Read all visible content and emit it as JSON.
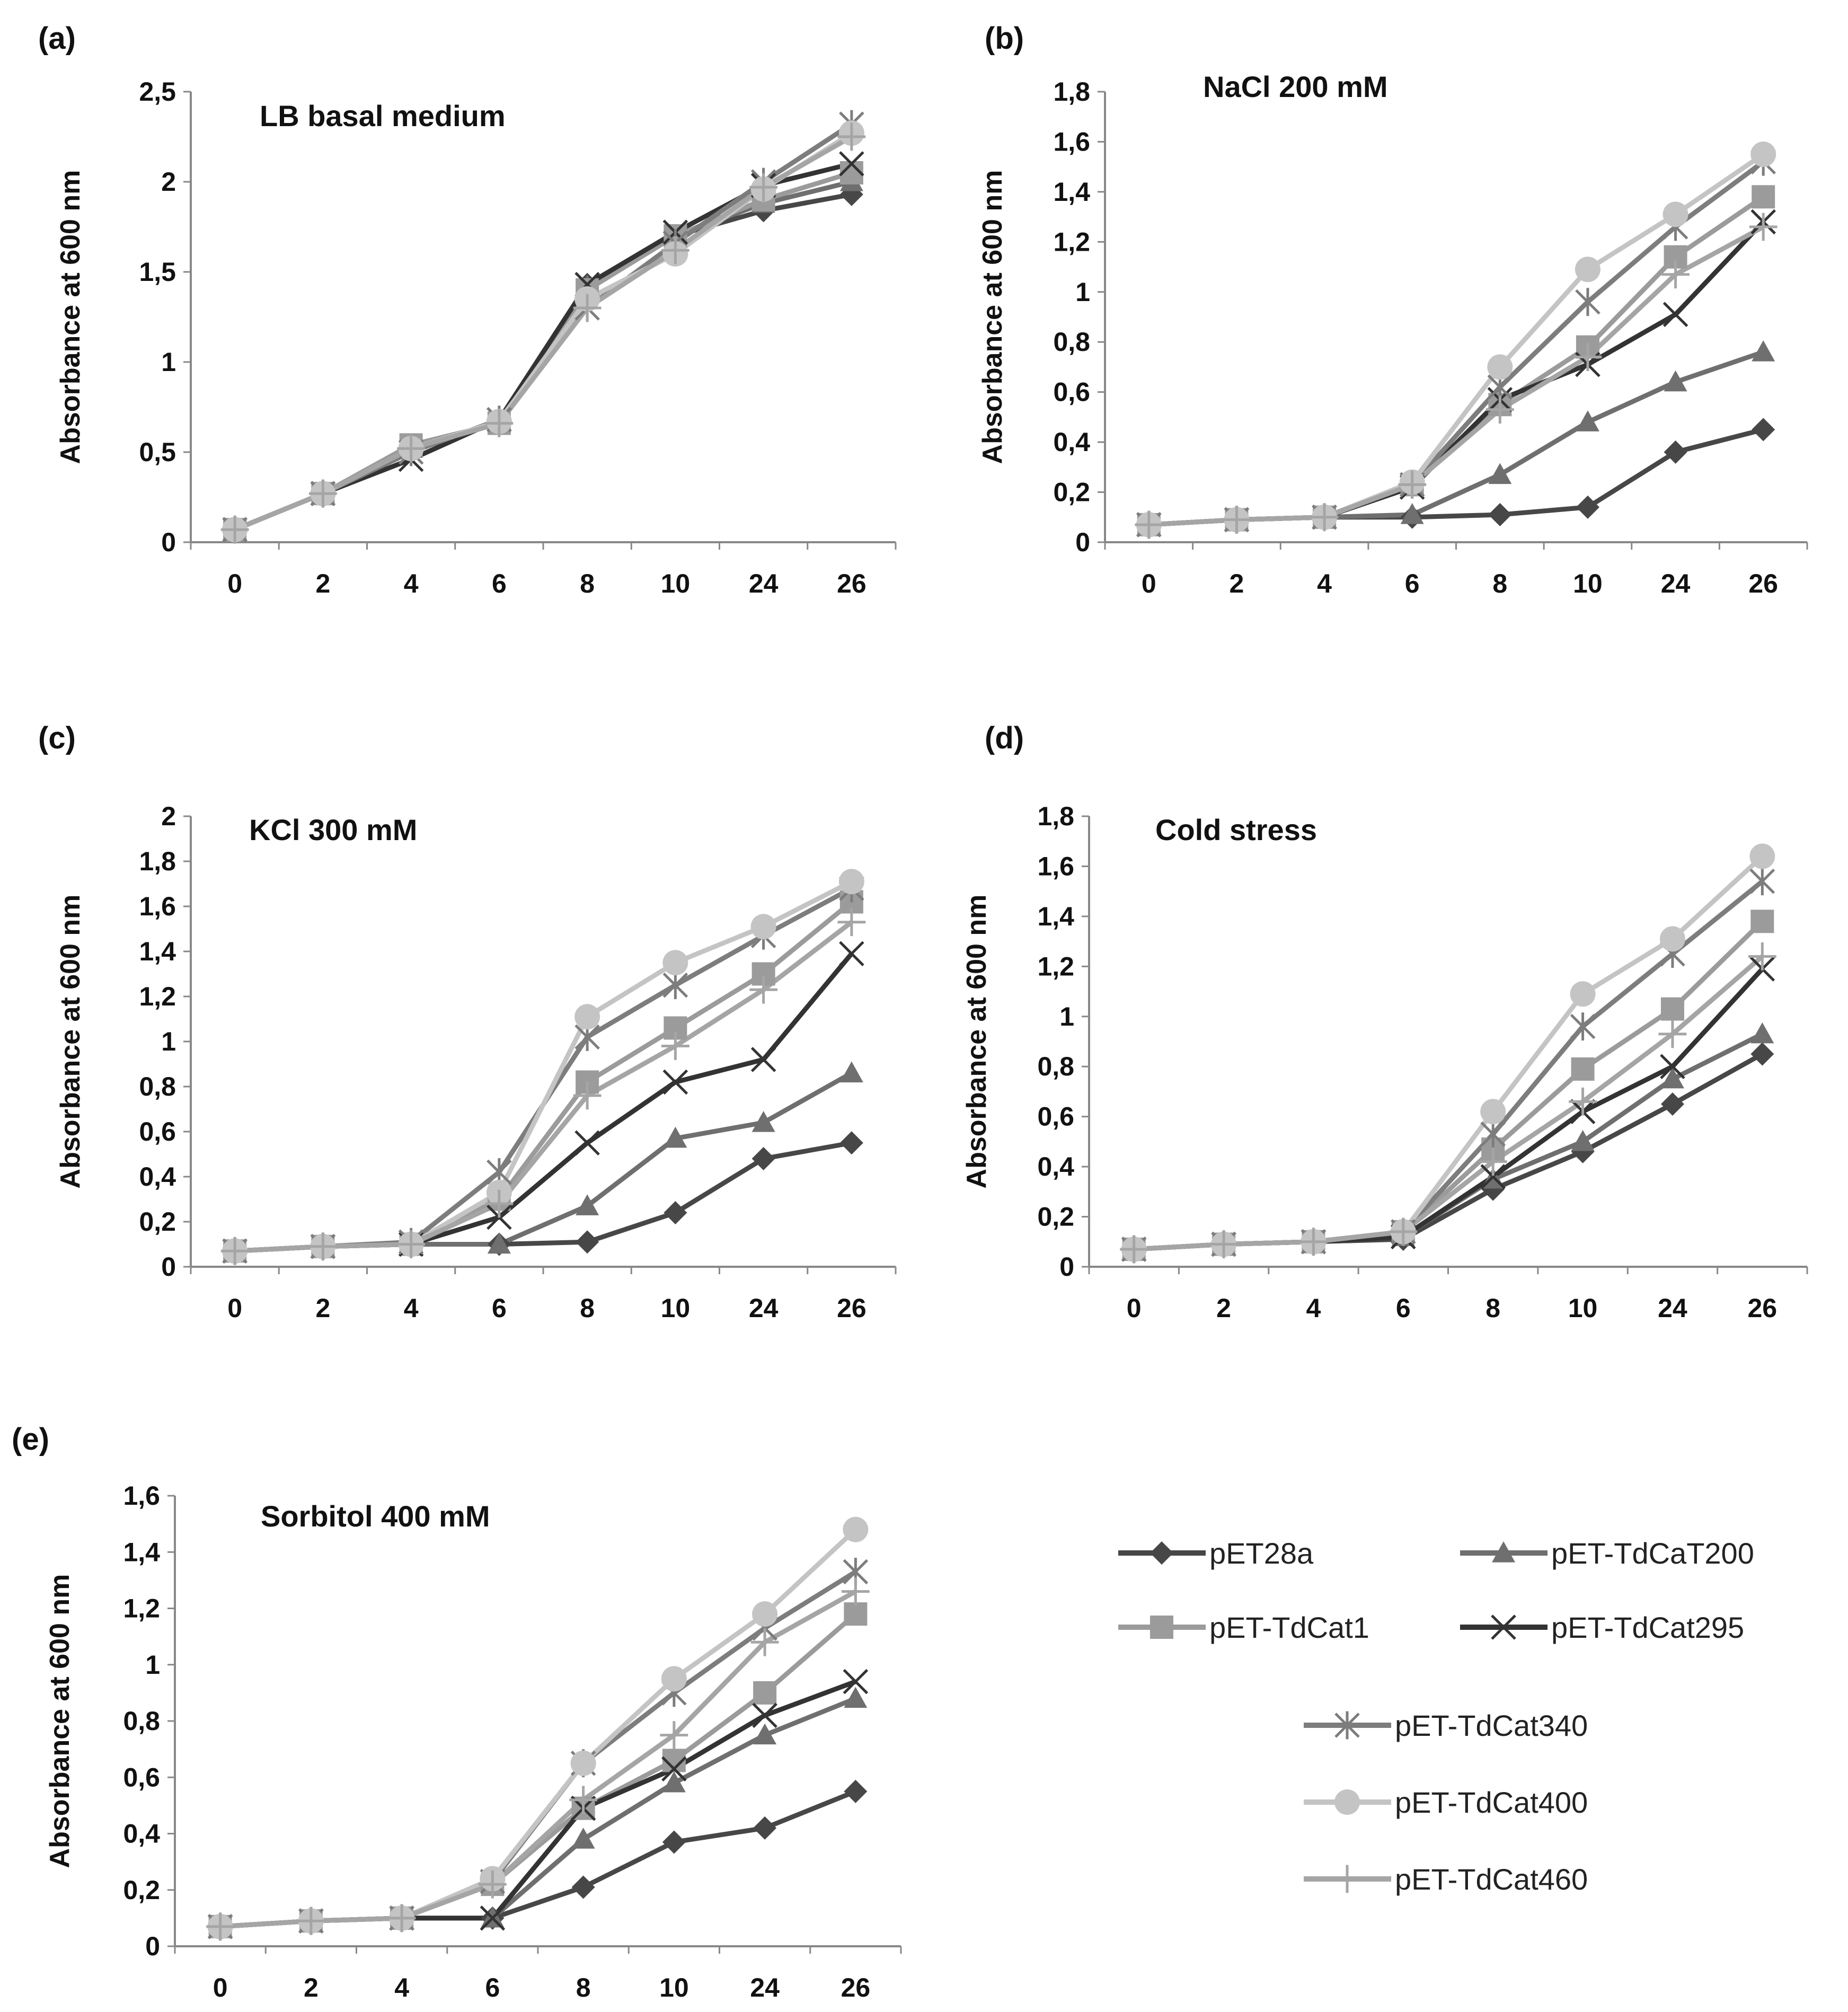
{
  "series_styles": [
    {
      "name": "pET28a",
      "color": "#474747",
      "marker": "diamond-icon"
    },
    {
      "name": "pET-TdCaT200",
      "color": "#6f6f6f",
      "marker": "triangle-icon"
    },
    {
      "name": "pET-TdCat1",
      "color": "#9b9b9b",
      "marker": "square-icon"
    },
    {
      "name": "pET-TdCat295",
      "color": "#333333",
      "marker": "x-cross-icon"
    },
    {
      "name": "pET-TdCat340",
      "color": "#7d7d7d",
      "marker": "asterisk-icon"
    },
    {
      "name": "pET-TdCat400",
      "color": "#c4c4c4",
      "marker": "circle-icon"
    },
    {
      "name": "pET-TdCat460",
      "color": "#a5a5a5",
      "marker": "plus-icon"
    }
  ],
  "legend": {
    "items": [
      "pET28a",
      "pET-TdCaT200",
      "pET-TdCat1",
      "pET-TdCat295",
      "pET-TdCat340",
      "pET-TdCat400",
      "pET-TdCat460"
    ]
  },
  "chart_data": [
    {
      "panel": "(a)",
      "type": "line",
      "title": "LB basal medium",
      "xlabel": "",
      "ylabel": "Absorbance at 600 nm",
      "categories": [
        "0",
        "2",
        "4",
        "6",
        "8",
        "10",
        "24",
        "26"
      ],
      "ylim": [
        0,
        2.5
      ],
      "yticks": [
        "0",
        "0,5",
        "1",
        "1,5",
        "2",
        "2,5"
      ],
      "series": [
        {
          "name": "pET28a",
          "values": [
            0.07,
            0.27,
            0.52,
            0.66,
            1.43,
            1.7,
            1.84,
            1.93
          ]
        },
        {
          "name": "pET-TdCaT200",
          "values": [
            0.07,
            0.27,
            0.52,
            0.66,
            1.42,
            1.7,
            1.88,
            2.0
          ]
        },
        {
          "name": "pET-TdCat1",
          "values": [
            0.07,
            0.27,
            0.54,
            0.66,
            1.4,
            1.7,
            1.9,
            2.05
          ]
        },
        {
          "name": "pET-TdCat295",
          "values": [
            0.07,
            0.27,
            0.46,
            0.68,
            1.43,
            1.72,
            1.98,
            2.1
          ]
        },
        {
          "name": "pET-TdCat340",
          "values": [
            0.07,
            0.27,
            0.5,
            0.68,
            1.3,
            1.66,
            2.0,
            2.32
          ]
        },
        {
          "name": "pET-TdCat400",
          "values": [
            0.07,
            0.27,
            0.52,
            0.67,
            1.35,
            1.6,
            1.96,
            2.27
          ]
        },
        {
          "name": "pET-TdCat460",
          "values": [
            0.07,
            0.27,
            0.52,
            0.66,
            1.3,
            1.62,
            1.97,
            2.25
          ]
        }
      ]
    },
    {
      "panel": "(b)",
      "type": "line",
      "title": "NaCl 200 mM",
      "xlabel": "",
      "ylabel": "Absorbance at 600 nm",
      "categories": [
        "0",
        "2",
        "4",
        "6",
        "8",
        "10",
        "24",
        "26"
      ],
      "ylim": [
        0,
        1.8
      ],
      "yticks": [
        "0",
        "0,2",
        "0,4",
        "0,6",
        "0,8",
        "1",
        "1,2",
        "1,4",
        "1,6",
        "1,8"
      ],
      "series": [
        {
          "name": "pET28a",
          "values": [
            0.07,
            0.09,
            0.1,
            0.1,
            0.11,
            0.14,
            0.36,
            0.45
          ]
        },
        {
          "name": "pET-TdCaT200",
          "values": [
            0.07,
            0.09,
            0.1,
            0.11,
            0.27,
            0.48,
            0.64,
            0.76
          ]
        },
        {
          "name": "pET-TdCat1",
          "values": [
            0.07,
            0.09,
            0.1,
            0.23,
            0.55,
            0.78,
            1.14,
            1.38
          ]
        },
        {
          "name": "pET-TdCat295",
          "values": [
            0.07,
            0.09,
            0.1,
            0.22,
            0.57,
            0.71,
            0.91,
            1.28
          ]
        },
        {
          "name": "pET-TdCat340",
          "values": [
            0.07,
            0.09,
            0.1,
            0.23,
            0.62,
            0.96,
            1.26,
            1.52
          ]
        },
        {
          "name": "pET-TdCat400",
          "values": [
            0.07,
            0.09,
            0.1,
            0.24,
            0.7,
            1.09,
            1.31,
            1.55
          ]
        },
        {
          "name": "pET-TdCat460",
          "values": [
            0.07,
            0.09,
            0.1,
            0.23,
            0.53,
            0.74,
            1.07,
            1.26
          ]
        }
      ]
    },
    {
      "panel": "(c)",
      "type": "line",
      "title": "KCl 300 mM",
      "xlabel": "",
      "ylabel": "Absorbance at 600 nm",
      "categories": [
        "0",
        "2",
        "4",
        "6",
        "8",
        "10",
        "24",
        "26"
      ],
      "ylim": [
        0,
        2
      ],
      "yticks": [
        "0",
        "0,2",
        "0,4",
        "0,6",
        "0,8",
        "1",
        "1,2",
        "1,4",
        "1,6",
        "1,8",
        "2"
      ],
      "series": [
        {
          "name": "pET28a",
          "values": [
            0.07,
            0.09,
            0.1,
            0.1,
            0.11,
            0.24,
            0.48,
            0.55
          ]
        },
        {
          "name": "pET-TdCaT200",
          "values": [
            0.07,
            0.09,
            0.1,
            0.1,
            0.27,
            0.57,
            0.64,
            0.86
          ]
        },
        {
          "name": "pET-TdCat1",
          "values": [
            0.07,
            0.09,
            0.1,
            0.3,
            0.82,
            1.06,
            1.3,
            1.62
          ]
        },
        {
          "name": "pET-TdCat295",
          "values": [
            0.07,
            0.09,
            0.1,
            0.22,
            0.55,
            0.82,
            0.92,
            1.39
          ]
        },
        {
          "name": "pET-TdCat340",
          "values": [
            0.07,
            0.09,
            0.11,
            0.42,
            1.02,
            1.25,
            1.47,
            1.68
          ]
        },
        {
          "name": "pET-TdCat400",
          "values": [
            0.07,
            0.09,
            0.1,
            0.33,
            1.11,
            1.35,
            1.51,
            1.71
          ]
        },
        {
          "name": "pET-TdCat460",
          "values": [
            0.07,
            0.09,
            0.1,
            0.28,
            0.76,
            0.98,
            1.23,
            1.53
          ]
        }
      ]
    },
    {
      "panel": "(d)",
      "type": "line",
      "title": "Cold stress",
      "xlabel": "",
      "ylabel": "Absorbance at 600 nm",
      "categories": [
        "0",
        "2",
        "4",
        "6",
        "8",
        "10",
        "24",
        "26"
      ],
      "ylim": [
        0,
        1.8
      ],
      "yticks": [
        "0",
        "0,2",
        "0,4",
        "0,6",
        "0,8",
        "1",
        "1,2",
        "1,4",
        "1,6",
        "1,8"
      ],
      "series": [
        {
          "name": "pET28a",
          "values": [
            0.07,
            0.09,
            0.1,
            0.11,
            0.31,
            0.46,
            0.65,
            0.85
          ]
        },
        {
          "name": "pET-TdCaT200",
          "values": [
            0.07,
            0.09,
            0.1,
            0.12,
            0.35,
            0.5,
            0.75,
            0.93
          ]
        },
        {
          "name": "pET-TdCat1",
          "values": [
            0.07,
            0.09,
            0.1,
            0.14,
            0.47,
            0.79,
            1.03,
            1.38
          ]
        },
        {
          "name": "pET-TdCat295",
          "values": [
            0.07,
            0.09,
            0.1,
            0.12,
            0.36,
            0.62,
            0.8,
            1.19
          ]
        },
        {
          "name": "pET-TdCat340",
          "values": [
            0.07,
            0.09,
            0.1,
            0.14,
            0.53,
            0.96,
            1.25,
            1.54
          ]
        },
        {
          "name": "pET-TdCat400",
          "values": [
            0.07,
            0.09,
            0.1,
            0.14,
            0.62,
            1.09,
            1.31,
            1.64
          ]
        },
        {
          "name": "pET-TdCat460",
          "values": [
            0.07,
            0.09,
            0.1,
            0.14,
            0.42,
            0.66,
            0.93,
            1.24
          ]
        }
      ]
    },
    {
      "panel": "(e)",
      "type": "line",
      "title": "Sorbitol 400 mM",
      "xlabel": "",
      "ylabel": "Absorbance at 600 nm",
      "categories": [
        "0",
        "2",
        "4",
        "6",
        "8",
        "10",
        "24",
        "26"
      ],
      "ylim": [
        0,
        1.6
      ],
      "yticks": [
        "0",
        "0,2",
        "0,4",
        "0,6",
        "0,8",
        "1",
        "1,2",
        "1,4",
        "1,6"
      ],
      "series": [
        {
          "name": "pET28a",
          "values": [
            0.07,
            0.09,
            0.1,
            0.1,
            0.21,
            0.37,
            0.42,
            0.55
          ]
        },
        {
          "name": "pET-TdCaT200",
          "values": [
            0.07,
            0.09,
            0.1,
            0.1,
            0.38,
            0.58,
            0.75,
            0.88
          ]
        },
        {
          "name": "pET-TdCat1",
          "values": [
            0.07,
            0.09,
            0.1,
            0.22,
            0.49,
            0.66,
            0.9,
            1.18
          ]
        },
        {
          "name": "pET-TdCat295",
          "values": [
            0.07,
            0.09,
            0.1,
            0.1,
            0.49,
            0.63,
            0.82,
            0.94
          ]
        },
        {
          "name": "pET-TdCat340",
          "values": [
            0.07,
            0.09,
            0.1,
            0.23,
            0.65,
            0.9,
            1.13,
            1.33
          ]
        },
        {
          "name": "pET-TdCat400",
          "values": [
            0.07,
            0.09,
            0.1,
            0.24,
            0.65,
            0.95,
            1.18,
            1.48
          ]
        },
        {
          "name": "pET-TdCat460",
          "values": [
            0.07,
            0.09,
            0.1,
            0.22,
            0.52,
            0.75,
            1.08,
            1.26
          ]
        }
      ]
    }
  ]
}
